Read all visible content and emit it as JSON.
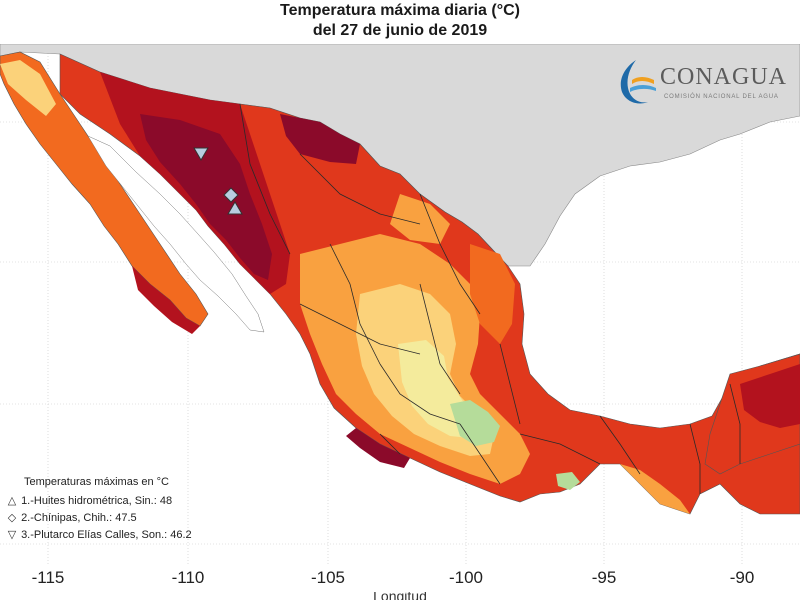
{
  "title": {
    "line1": "Temperatura máxima diaria (°C)",
    "line2": "del 27 de junio de 2019"
  },
  "logo": {
    "name": "CONAGUA",
    "subtitle": "COMISIÓN NACIONAL DEL AGUA"
  },
  "x_ticks": [
    {
      "label": "-115",
      "value": -115
    },
    {
      "label": "-110",
      "value": -110
    },
    {
      "label": "-105",
      "value": -105
    },
    {
      "label": "-100",
      "value": -100
    },
    {
      "label": "-95",
      "value": -95
    },
    {
      "label": "-90",
      "value": -90
    }
  ],
  "x_axis_label": "Longitud",
  "legend": {
    "title": "Temperaturas máximas en °C",
    "items": [
      {
        "symbol": "△",
        "symbol_name": "triangle-up",
        "text": "1.-Huites hidrométrica, Sin.: 48",
        "station": "Huites hidrométrica",
        "state": "Sin.",
        "value": 48
      },
      {
        "symbol": "◇",
        "symbol_name": "diamond",
        "text": "2.-Chínipas, Chih.: 47.5",
        "station": "Chínipas",
        "state": "Chih.",
        "value": 47.5
      },
      {
        "symbol": "▽",
        "symbol_name": "triangle-down",
        "text": "3.-Plutarco Elías Calles, Son.: 46.2",
        "station": "Plutarco Elías Calles",
        "state": "Son.",
        "value": 46.2
      }
    ]
  },
  "colors": {
    "ocean": "#ffffff",
    "other_land": "#d9d9d9",
    "temp_very_hot": "#8b0a2a",
    "temp_hot": "#b3121e",
    "temp_warm": "#e0381c",
    "temp_mild_warm": "#f26a1f",
    "temp_mild": "#f9a140",
    "temp_cool": "#fbd27a",
    "temp_cooler": "#f4eb9c",
    "temp_coolest": "#b5dc9a",
    "state_border": "#2a2a2a"
  }
}
